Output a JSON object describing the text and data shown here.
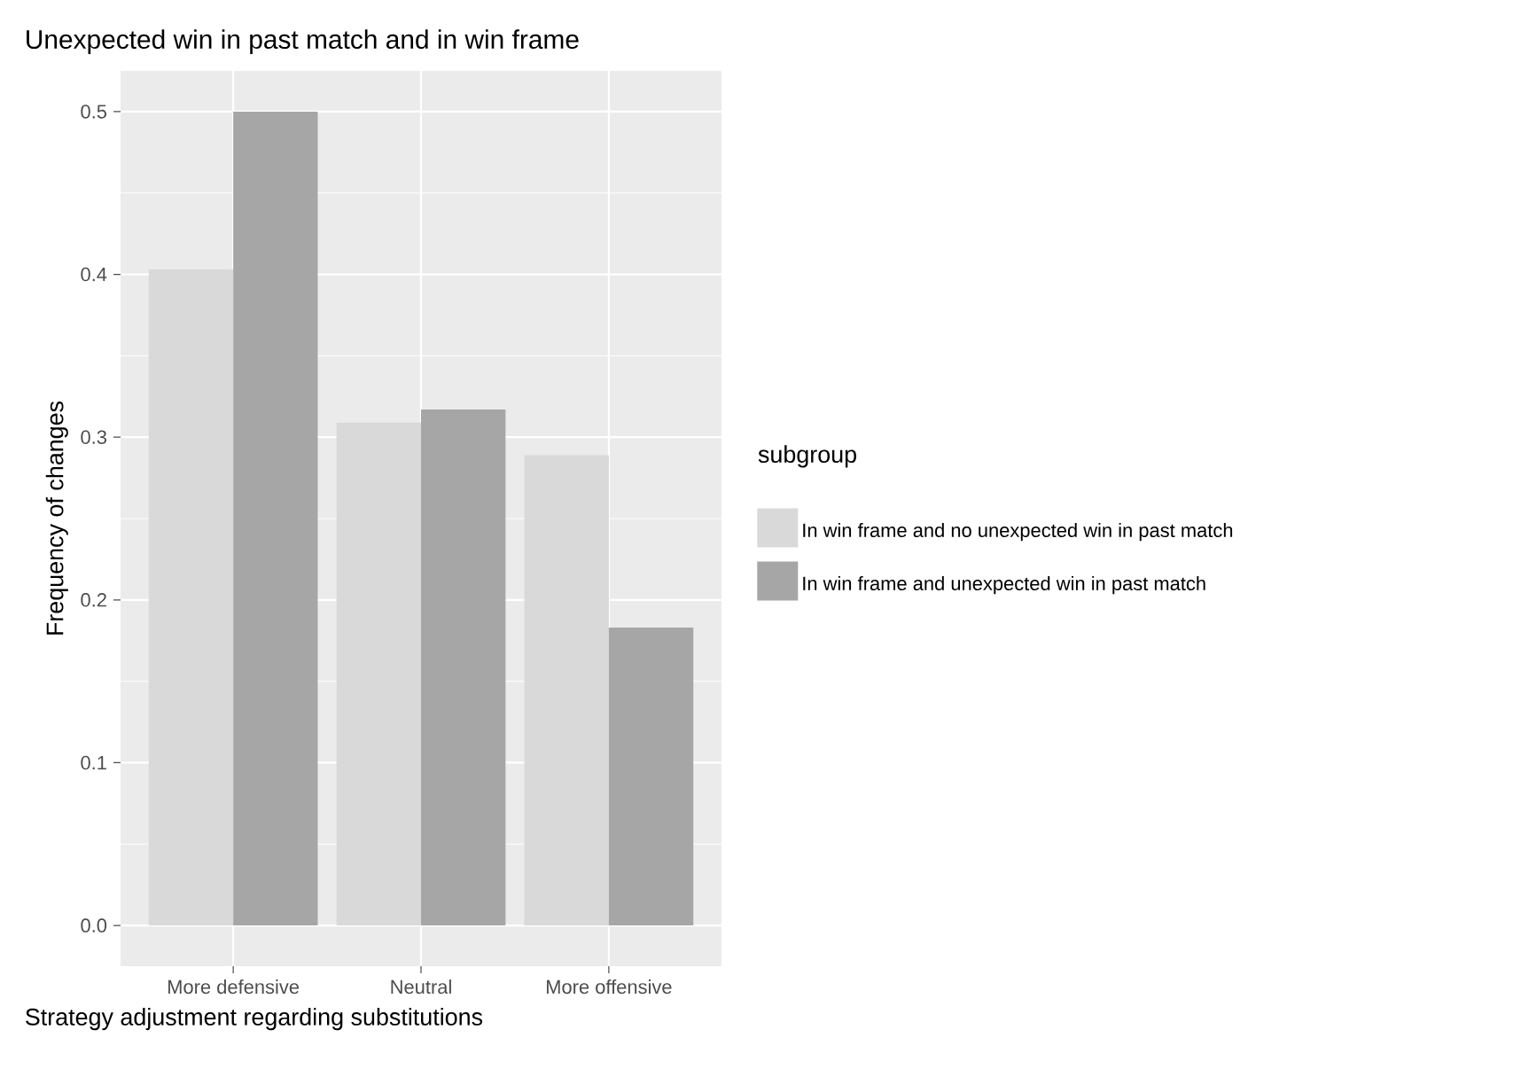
{
  "chart_data": {
    "type": "bar",
    "title": "Unexpected win in past match and in win frame",
    "xlabel": "Strategy adjustment regarding substitutions",
    "ylabel": "Frequency of changes",
    "legend_title": "subgroup",
    "categories": [
      "More defensive",
      "Neutral",
      "More offensive"
    ],
    "series": [
      {
        "name": "In win frame and no unexpected win in past match",
        "color": "#d9d9d9",
        "values": [
          0.403,
          0.309,
          0.289
        ]
      },
      {
        "name": "In win frame and unexpected win in past match",
        "color": "#a6a6a6",
        "values": [
          0.5,
          0.317,
          0.183
        ]
      }
    ],
    "ylim": [
      -0.025,
      0.525
    ],
    "yticks": [
      {
        "value": 0,
        "label": "0.0"
      },
      0.1,
      0.2,
      0.3,
      0.4,
      0.5
    ],
    "grid": true,
    "legend": "right"
  }
}
